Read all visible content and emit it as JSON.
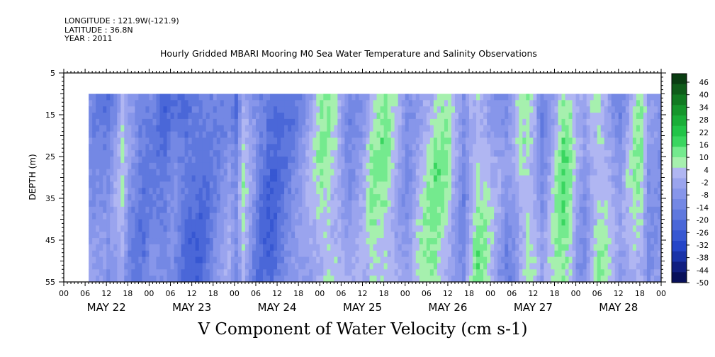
{
  "header": {
    "longitude": "LONGITUDE : 121.9W(-121.9)",
    "latitude": "LATITUDE : 36.8N",
    "year": "YEAR : 2011"
  },
  "chart_data": {
    "type": "heatmap",
    "title": "Hourly Gridded MBARI Mooring M0 Sea Water Temperature and Salinity Observations",
    "xlabel": "V Component of Water Velocity (cm s-1)",
    "ylabel": "DEPTH (m)",
    "x_range_hours": [
      0,
      168
    ],
    "x_hour_ticks": [
      "00",
      "06",
      "12",
      "18",
      "00",
      "06",
      "12",
      "18",
      "00",
      "06",
      "12",
      "18",
      "00",
      "06",
      "12",
      "18",
      "00",
      "06",
      "12",
      "18",
      "00",
      "06",
      "12",
      "18",
      "00",
      "06",
      "12",
      "18",
      "00"
    ],
    "x_day_labels": [
      "MAY 22",
      "MAY 23",
      "MAY 24",
      "MAY 25",
      "MAY 26",
      "MAY 27",
      "MAY 28"
    ],
    "y_range": [
      5,
      55
    ],
    "y_ticks": [
      5,
      15,
      25,
      35,
      45,
      55
    ],
    "data_depth_range": [
      10,
      55
    ],
    "data_start_hour": 7,
    "data_end_hour": 169,
    "colorbar": {
      "levels": [
        "46",
        "40",
        "34",
        "28",
        "22",
        "16",
        "10",
        "4",
        "-2",
        "-8",
        "-14",
        "-20",
        "-26",
        "-32",
        "-38",
        "-44",
        "-50"
      ],
      "colors": [
        "#0a3d12",
        "#0f5c1a",
        "#127a22",
        "#16962c",
        "#1aae38",
        "#22c448",
        "#3ad660",
        "#74ea8e",
        "#a6f0ae",
        "#b0b6f2",
        "#9aa4ee",
        "#8796ea",
        "#7488e4",
        "#5f78de",
        "#4a67d8",
        "#3757d2",
        "#2545c8",
        "#1a33a8",
        "#111f80",
        "#08105a"
      ]
    },
    "anomaly_by_hour": [
      [
        7,
        -6
      ],
      [
        12,
        -12
      ],
      [
        16,
        2
      ],
      [
        18,
        -8
      ],
      [
        22,
        -14
      ],
      [
        24,
        -10
      ],
      [
        28,
        -16
      ],
      [
        30,
        -12
      ],
      [
        34,
        -20
      ],
      [
        38,
        -18
      ],
      [
        42,
        -10
      ],
      [
        46,
        -4
      ],
      [
        48,
        -14
      ],
      [
        50,
        4
      ],
      [
        52,
        -6
      ],
      [
        55,
        -16
      ],
      [
        58,
        -20
      ],
      [
        62,
        -14
      ],
      [
        66,
        -8
      ],
      [
        68,
        -4
      ],
      [
        70,
        2
      ],
      [
        72,
        8
      ],
      [
        74,
        10
      ],
      [
        76,
        6
      ],
      [
        80,
        -6
      ],
      [
        84,
        -2
      ],
      [
        86,
        6
      ],
      [
        90,
        10
      ],
      [
        92,
        6
      ],
      [
        96,
        -6
      ],
      [
        100,
        4
      ],
      [
        104,
        10
      ],
      [
        108,
        6
      ],
      [
        110,
        -2
      ],
      [
        112,
        -8
      ],
      [
        114,
        4
      ],
      [
        116,
        10
      ],
      [
        118,
        6
      ],
      [
        121,
        -4
      ],
      [
        124,
        -10
      ],
      [
        126,
        -4
      ],
      [
        128,
        6
      ],
      [
        130,
        10
      ],
      [
        132,
        4
      ],
      [
        134,
        -8
      ],
      [
        138,
        6
      ],
      [
        140,
        12
      ],
      [
        142,
        8
      ],
      [
        144,
        -2
      ],
      [
        146,
        -6
      ],
      [
        148,
        4
      ],
      [
        150,
        10
      ],
      [
        152,
        6
      ],
      [
        154,
        -2
      ],
      [
        156,
        -8
      ],
      [
        160,
        6
      ],
      [
        162,
        8
      ],
      [
        164,
        -6
      ],
      [
        166,
        -4
      ],
      [
        169,
        -4
      ]
    ]
  }
}
